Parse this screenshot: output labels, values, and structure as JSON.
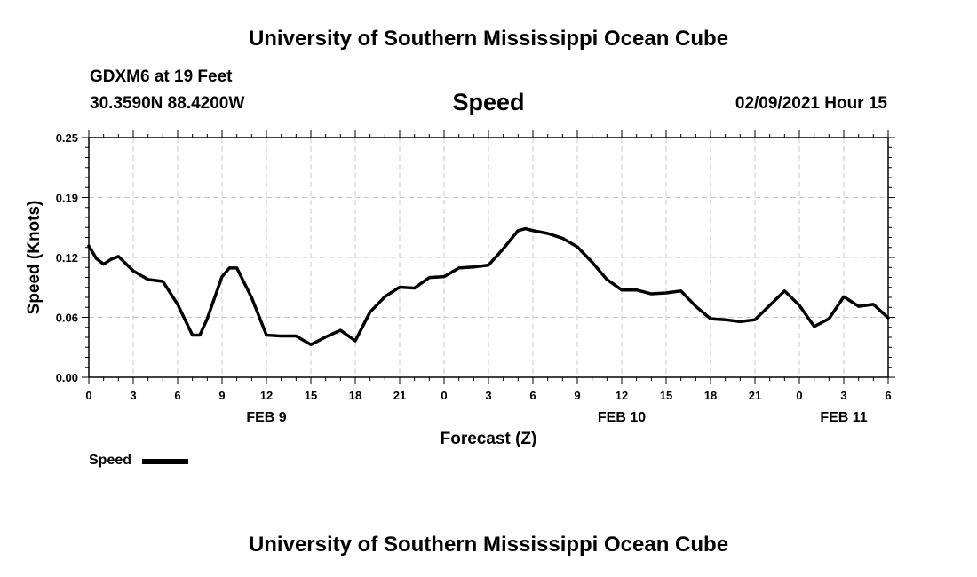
{
  "header": {
    "title": "University of Southern Mississippi Ocean Cube",
    "station": "GDXM6 at 19 Feet",
    "location": "30.3590N 88.4200W",
    "timestamp": "02/09/2021 Hour 15"
  },
  "footer": {
    "title": "University of Southern Mississippi Ocean Cube"
  },
  "legend": {
    "label": "Speed"
  },
  "chart_data": {
    "type": "line",
    "title": "Speed",
    "xlabel": "Forecast (Z)",
    "ylabel": "Speed (Knots)",
    "xlim": [
      0,
      54
    ],
    "ylim": [
      0,
      0.25
    ],
    "y_ticks": [
      "0.00",
      "0.06",
      "0.12",
      "0.19",
      "0.25"
    ],
    "x_tick_labels": [
      "0",
      "3",
      "6",
      "9",
      "12",
      "15",
      "18",
      "21",
      "0",
      "3",
      "6",
      "9",
      "12",
      "15",
      "18",
      "21",
      "0",
      "3",
      "6"
    ],
    "date_labels": [
      {
        "label": "FEB 9",
        "hour": 12
      },
      {
        "label": "FEB 10",
        "hour": 36
      },
      {
        "label": "FEB 11",
        "hour": 51
      }
    ],
    "grid": true,
    "legend_position": "bottom-left",
    "series": [
      {
        "name": "Speed",
        "color": "#000000",
        "x": [
          0,
          0.5,
          1,
          1.5,
          2,
          3,
          4,
          5,
          6,
          7,
          7.5,
          8,
          9,
          9.5,
          10,
          11,
          12,
          13,
          14,
          15,
          16,
          17,
          18,
          19,
          20,
          21,
          22,
          23,
          24,
          25,
          26,
          27,
          28,
          29,
          29.5,
          30,
          31,
          32,
          33,
          34,
          35,
          36,
          37,
          38,
          39,
          40,
          41,
          42,
          43,
          44,
          45,
          46,
          47,
          48,
          49,
          50,
          51,
          52,
          53,
          54
        ],
        "values": [
          0.137,
          0.124,
          0.118,
          0.123,
          0.126,
          0.111,
          0.102,
          0.1,
          0.076,
          0.044,
          0.044,
          0.061,
          0.105,
          0.114,
          0.114,
          0.083,
          0.044,
          0.043,
          0.043,
          0.034,
          0.042,
          0.049,
          0.038,
          0.068,
          0.084,
          0.094,
          0.093,
          0.104,
          0.105,
          0.114,
          0.115,
          0.117,
          0.134,
          0.153,
          0.155,
          0.153,
          0.15,
          0.145,
          0.136,
          0.12,
          0.102,
          0.091,
          0.091,
          0.087,
          0.088,
          0.09,
          0.074,
          0.061,
          0.06,
          0.058,
          0.06,
          0.075,
          0.09,
          0.075,
          0.053,
          0.061,
          0.084,
          0.074,
          0.076,
          0.062
        ]
      }
    ]
  }
}
